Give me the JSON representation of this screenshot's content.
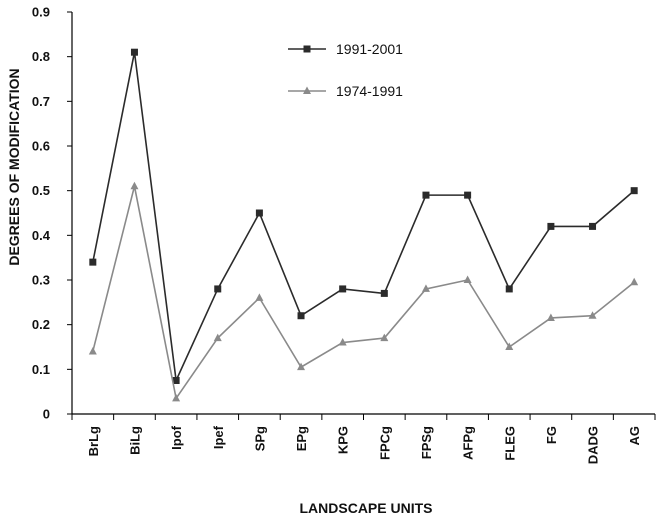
{
  "chart_data": {
    "type": "line",
    "title": "",
    "xlabel": "LANDSCAPE UNITS",
    "ylabel": "DEGREES OF MODIFICATION",
    "ylim": [
      0,
      0.9
    ],
    "yticks": [
      "0",
      "0.1",
      "0.2",
      "0.3",
      "0.4",
      "0.5",
      "0.6",
      "0.7",
      "0.8",
      "0.9"
    ],
    "categories": [
      "BrLg",
      "BiLg",
      "Ipof",
      "Ipef",
      "SPg",
      "EPg",
      "KPG",
      "FPCg",
      "FPSg",
      "AFPg",
      "FLEG",
      "FG",
      "DADG",
      "AG"
    ],
    "grid": false,
    "legend_position": "top-center",
    "series": [
      {
        "name": "1991-2001",
        "marker": "square",
        "color": "#2b2b2b",
        "values": [
          0.34,
          0.81,
          0.075,
          0.28,
          0.45,
          0.22,
          0.28,
          0.27,
          0.49,
          0.49,
          0.28,
          0.42,
          0.42,
          0.5
        ]
      },
      {
        "name": "1974-1991",
        "marker": "triangle",
        "color": "#8a8a8a",
        "values": [
          0.14,
          0.51,
          0.035,
          0.17,
          0.26,
          0.105,
          0.16,
          0.17,
          0.28,
          0.3,
          0.15,
          0.215,
          0.22,
          0.295
        ]
      }
    ]
  }
}
